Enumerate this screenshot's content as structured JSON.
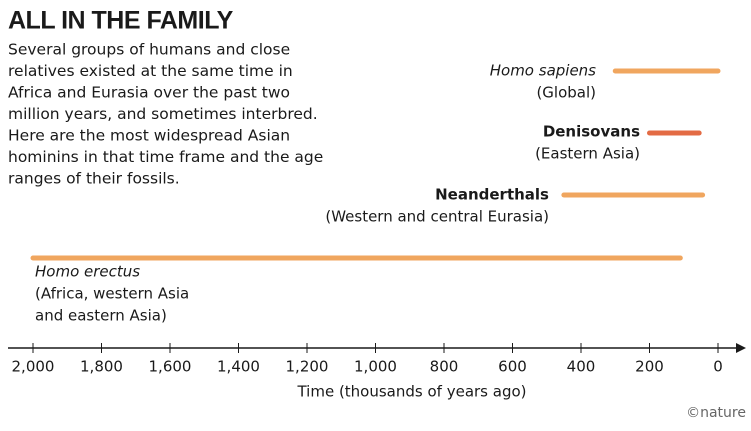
{
  "chart_data": {
    "type": "range",
    "title": "ALL IN THE FAMILY",
    "description": [
      "Several groups of humans and close",
      "relatives existed at the same time in",
      "Africa and Eurasia over the past two",
      "million years, and sometimes interbred.",
      "Here are the most widespread Asian",
      "hominins in that time frame and the age",
      "ranges of their fossils."
    ],
    "xlabel": "Time (thousands of years ago)",
    "credit": "©nature",
    "xlim": [
      2000,
      0
    ],
    "xticks": [
      {
        "value": 2000,
        "label": "2,000"
      },
      {
        "value": 1800,
        "label": "1,800"
      },
      {
        "value": 1600,
        "label": "1,600"
      },
      {
        "value": 1400,
        "label": "1,400"
      },
      {
        "value": 1200,
        "label": "1,200"
      },
      {
        "value": 1000,
        "label": "1,000"
      },
      800,
      600,
      400,
      200,
      0
    ],
    "series": [
      {
        "name": "Homo sapiens",
        "region": [
          "(Global)"
        ],
        "color": "#f0a257",
        "values": [
          300,
          0
        ]
      },
      {
        "name": "Denisovans",
        "region": [
          "(Eastern Asia)"
        ],
        "color": "#e2643a",
        "values": [
          200,
          55
        ]
      },
      {
        "name": "Neanderthals",
        "region": [
          "(Western and central Eurasia)"
        ],
        "color": "#f0a257",
        "values": [
          450,
          45
        ]
      },
      {
        "name": "Homo erectus",
        "region": [
          "(Africa, western Asia",
          "and eastern Asia)"
        ],
        "color": "#f0a257",
        "values": [
          2000,
          110
        ]
      }
    ]
  }
}
